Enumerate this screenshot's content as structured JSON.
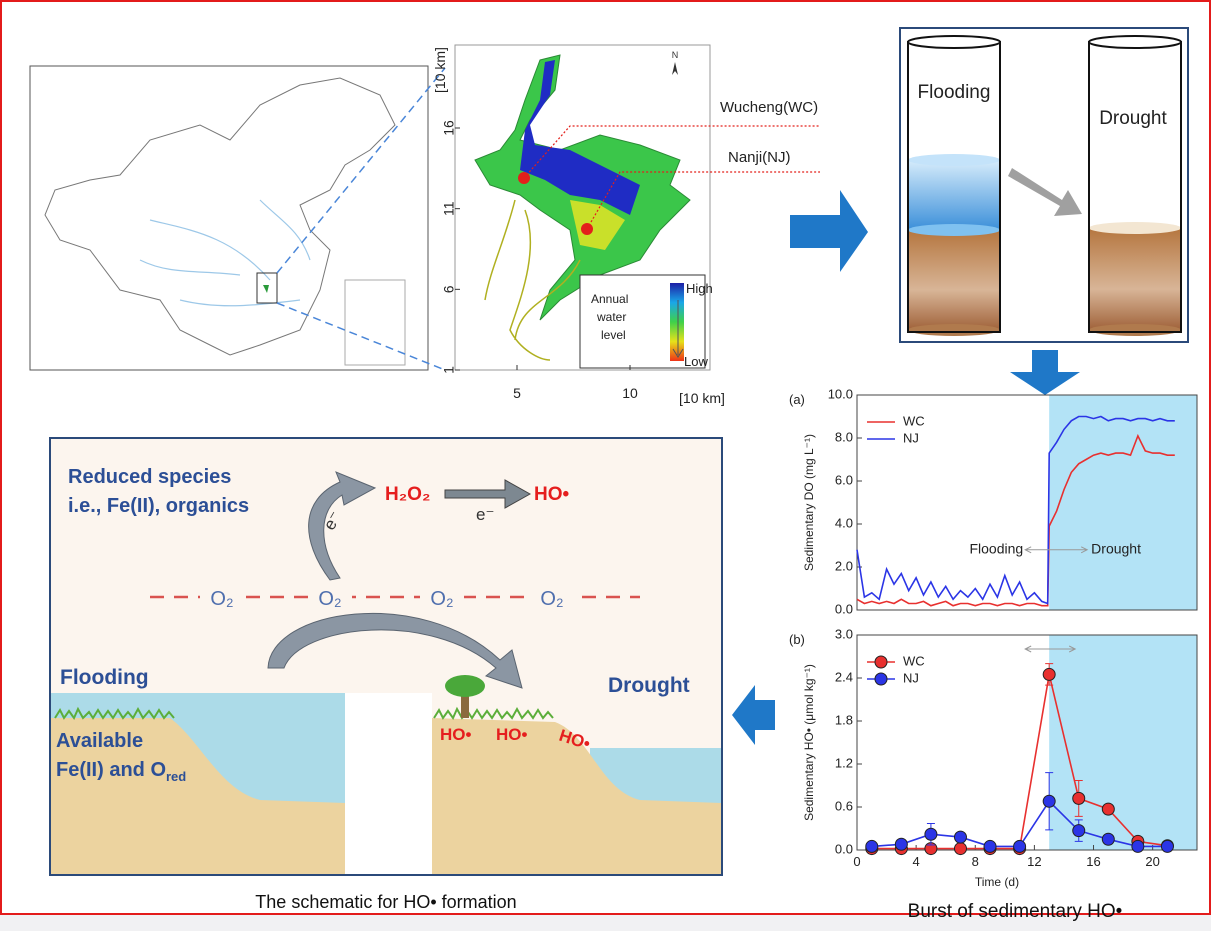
{
  "map": {
    "y_axis_label": "[10 km]",
    "x_axis_label": "[10 km]",
    "yticks": [
      1,
      6,
      11,
      16
    ],
    "xticks": [
      5,
      10
    ],
    "north": "N",
    "sites": [
      "Wucheng(WC)",
      "Nanji(NJ)"
    ],
    "legend_title": [
      "Annual",
      "water",
      "level"
    ],
    "legend_high": "High",
    "legend_low": "Low"
  },
  "tubes": {
    "left": "Flooding",
    "right": "Drought"
  },
  "schematic": {
    "species_line1": "Reduced species",
    "species_line2": "i.e., Fe(II), organics",
    "h2o2": "H₂O₂",
    "ho": "HO•",
    "electron1": "e⁻",
    "electron2": "e⁻",
    "oxygen": [
      "O₂",
      "O₂",
      "O₂",
      "O₂"
    ],
    "flooding": "Flooding",
    "drought": "Drought",
    "available_line1": "Available",
    "available_line2": "Fe(II) and O",
    "available_sub": "red",
    "ho_surface": [
      "HO•",
      "HO•",
      "HO•"
    ]
  },
  "captions": {
    "schematic": "The schematic for HO• formation",
    "charts": "Burst of sedimentary HO•"
  },
  "chart_data": [
    {
      "type": "line",
      "panel_label": "(a)",
      "y_label": "Sedimentary DO (mg L⁻¹)",
      "x": [
        0,
        0.5,
        1,
        1.5,
        2,
        2.5,
        3,
        3.5,
        4,
        4.5,
        5,
        5.5,
        6,
        6.5,
        7,
        7.5,
        8,
        8.5,
        9,
        9.5,
        10,
        10.5,
        11,
        11.5,
        12,
        12.5,
        12.9,
        13,
        13.5,
        14,
        14.5,
        15,
        15.5,
        16,
        16.5,
        17,
        17.5,
        18,
        18.5,
        19,
        19.5,
        20,
        20.5,
        21,
        21.5
      ],
      "series": [
        {
          "name": "WC",
          "color": "#e8302f",
          "values": [
            0.5,
            0.3,
            0.4,
            0.3,
            0.4,
            0.3,
            0.5,
            0.3,
            0.3,
            0.4,
            0.2,
            0.3,
            0.4,
            0.2,
            0.3,
            0.3,
            0.2,
            0.3,
            0.3,
            0.2,
            0.3,
            0.3,
            0.2,
            0.3,
            0.3,
            0.2,
            0.2,
            3.9,
            4.6,
            5.6,
            6.4,
            6.8,
            7.0,
            7.2,
            7.3,
            7.2,
            7.3,
            7.3,
            7.2,
            8.1,
            7.4,
            7.3,
            7.3,
            7.2,
            7.2
          ]
        },
        {
          "name": "NJ",
          "color": "#2b35e6",
          "values": [
            2.8,
            0.6,
            0.8,
            0.5,
            1.9,
            1.2,
            1.7,
            0.9,
            1.5,
            0.7,
            1.3,
            0.6,
            1.1,
            0.5,
            0.9,
            0.6,
            1.0,
            0.5,
            1.2,
            0.6,
            1.6,
            0.7,
            1.3,
            0.5,
            0.8,
            0.4,
            0.3,
            7.3,
            7.8,
            8.4,
            8.8,
            9.0,
            9.0,
            8.9,
            9.0,
            8.8,
            8.9,
            8.9,
            8.8,
            8.9,
            8.9,
            8.8,
            8.9,
            8.8,
            8.8
          ]
        }
      ],
      "xlim": [
        0,
        23
      ],
      "ylim": [
        0,
        10
      ],
      "yticks": [
        {
          "value": 0,
          "label": "0.0"
        },
        {
          "value": 2,
          "label": "2.0"
        },
        {
          "value": 4,
          "label": "4.0"
        },
        {
          "value": 6,
          "label": "6.0"
        },
        {
          "value": 8,
          "label": "8.0"
        },
        {
          "value": 10,
          "label": "10.0"
        }
      ],
      "drought_start": 13,
      "annotations": [
        "Flooding",
        "Drought"
      ],
      "legend": "top-left"
    },
    {
      "type": "line",
      "panel_label": "(b)",
      "y_label": "Sedimentary HO• (μmol kg⁻¹)",
      "x_label": "Time (d)",
      "x": [
        1,
        3,
        5,
        7,
        9,
        11,
        13,
        15,
        17,
        19,
        21
      ],
      "series": [
        {
          "name": "WC",
          "color": "#e8302f",
          "values": [
            0.02,
            0.02,
            0.02,
            0.02,
            0.02,
            0.02,
            2.45,
            0.72,
            0.57,
            0.12,
            0.06
          ],
          "errors": [
            0,
            0,
            0,
            0,
            0,
            0,
            0.15,
            0.25,
            0.05,
            0.05,
            0.03
          ]
        },
        {
          "name": "NJ",
          "color": "#2b35e6",
          "values": [
            0.05,
            0.08,
            0.22,
            0.18,
            0.05,
            0.05,
            0.68,
            0.27,
            0.15,
            0.05,
            0.05
          ],
          "errors": [
            0,
            0.03,
            0.15,
            0.05,
            0,
            0,
            0.4,
            0.15,
            0.05,
            0.03,
            0.03
          ]
        }
      ],
      "xlim": [
        0,
        23
      ],
      "ylim": [
        0,
        3
      ],
      "xticks": [
        0,
        4,
        8,
        12,
        16,
        20
      ],
      "yticks": [
        {
          "value": 0,
          "label": "0.0"
        },
        {
          "value": 0.6,
          "label": "0.6"
        },
        {
          "value": 1.2,
          "label": "1.2"
        },
        {
          "value": 1.8,
          "label": "1.8"
        },
        {
          "value": 2.4,
          "label": "2.4"
        },
        {
          "value": 3,
          "label": "3.0"
        }
      ],
      "drought_start": 13,
      "markers": true,
      "legend": "top-left"
    }
  ]
}
